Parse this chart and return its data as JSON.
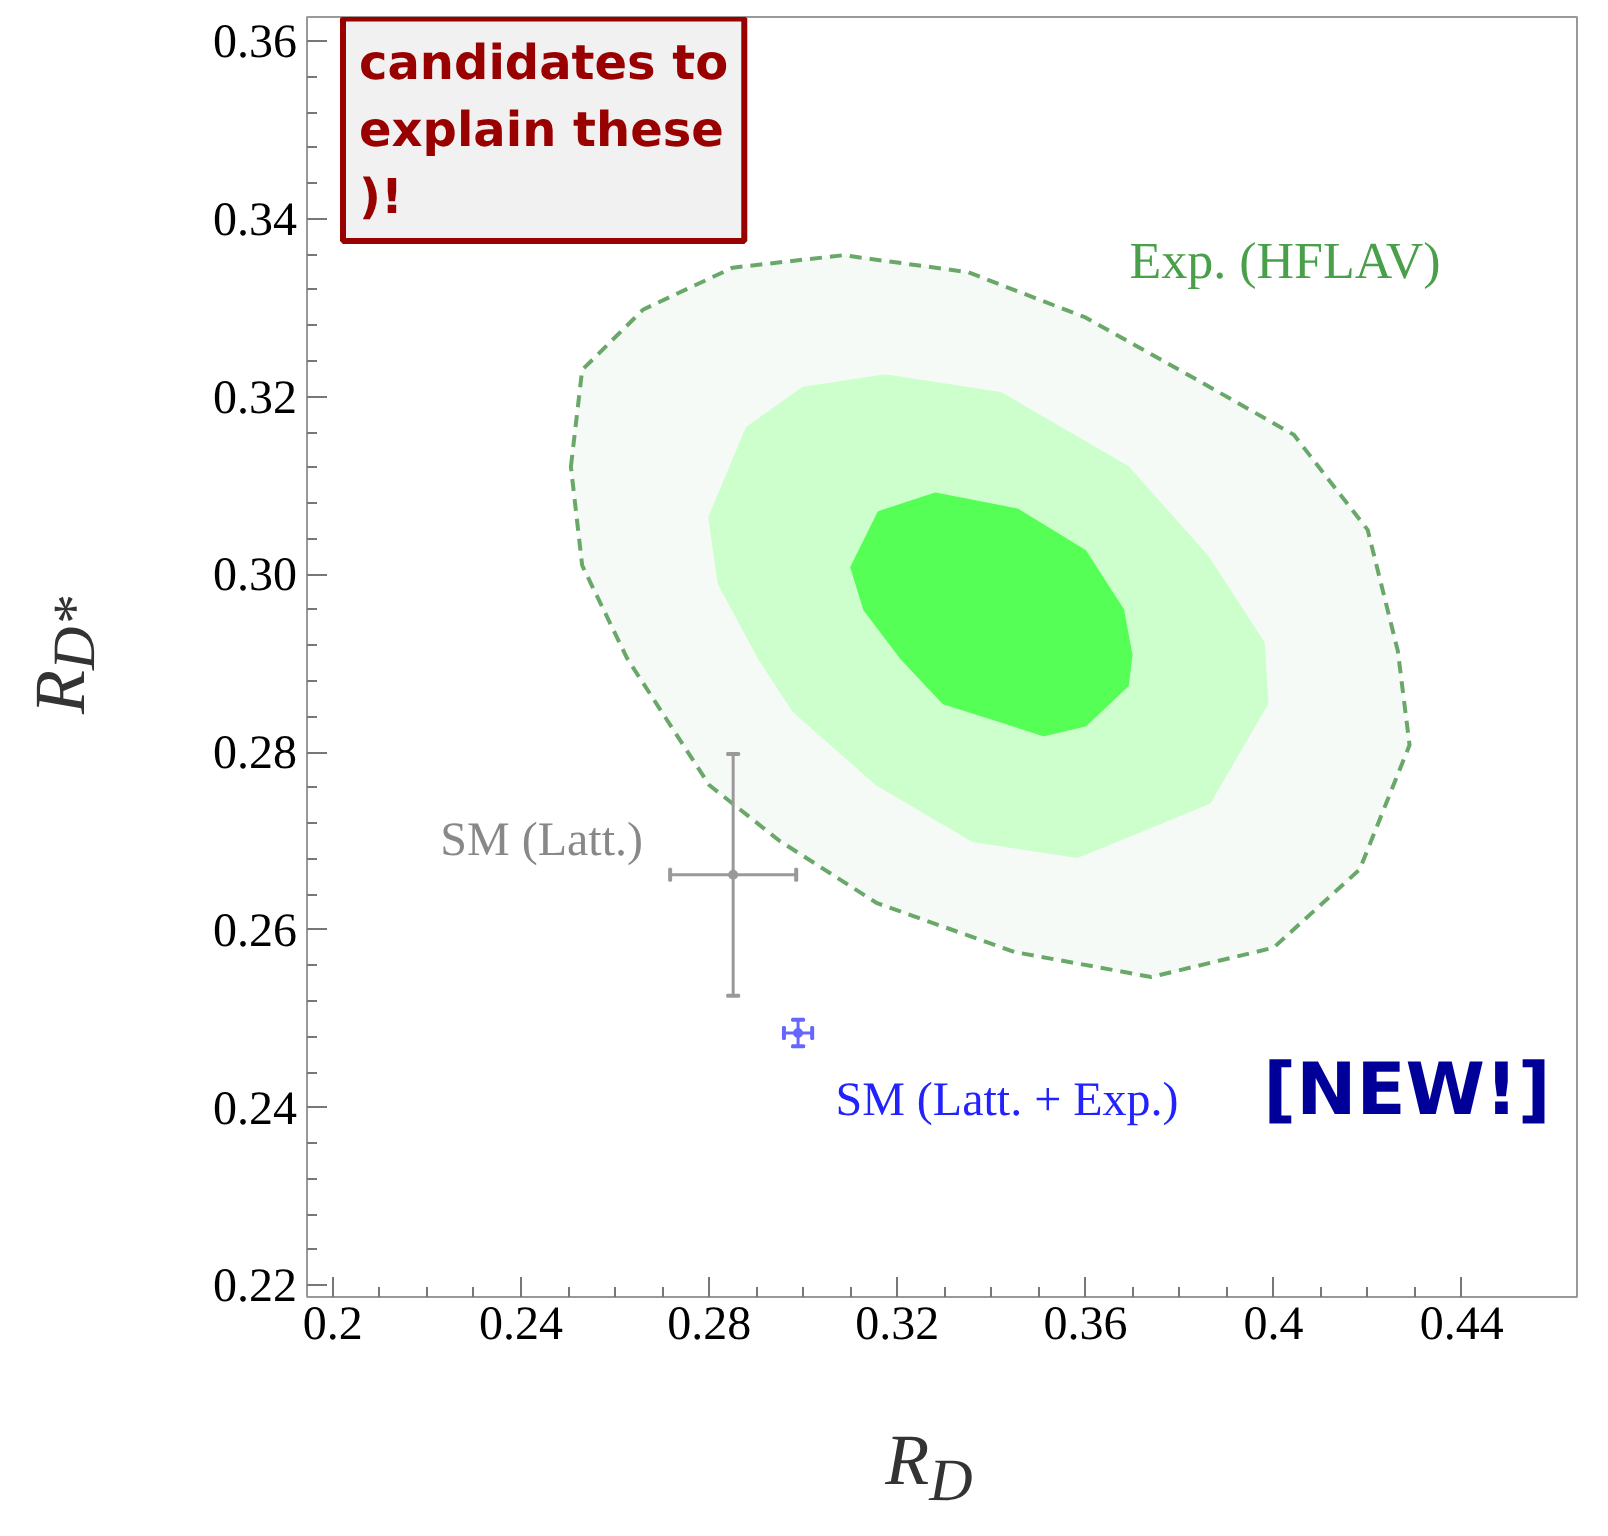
{
  "chart_data": {
    "type": "scatter",
    "xlabel": "R$_{D}$",
    "ylabel": "R$_{D*}$",
    "xlim": [
      0.1945,
      0.4645
    ],
    "ylim": [
      0.2187,
      0.3627
    ],
    "xticks": [
      0.2,
      0.24,
      0.28,
      0.32,
      0.36,
      {
        "value": 0.4,
        "label": "0.4"
      },
      0.44
    ],
    "yticks": [
      0.22,
      0.24,
      0.26,
      0.28,
      {
        "value": 0.3,
        "label": "0.30"
      },
      0.32,
      0.34,
      0.36
    ],
    "series": [
      {
        "type": "area",
        "line_style": "dashed",
        "color": "#6aa86a",
        "x": [
          0.2506,
          0.253,
          0.266,
          0.285,
          0.3085,
          0.335,
          0.36,
          0.385,
          0.4043,
          0.42,
          0.4264,
          0.4289,
          0.4183,
          0.4,
          0.374,
          0.345,
          0.3157,
          0.295,
          0.28,
          0.2626,
          0.253,
          0.2506
        ],
        "values": [
          0.3121,
          0.323,
          0.3298,
          0.3345,
          0.3359,
          0.334,
          0.3289,
          0.3215,
          0.3157,
          0.305,
          0.2914,
          0.2808,
          0.2668,
          0.258,
          0.2547,
          0.2575,
          0.263,
          0.27,
          0.2763,
          0.2905,
          0.301,
          0.3121
        ]
      },
      {
        "type": "area",
        "color": "#ccffcc",
        "x": [
          0.28,
          0.288,
          0.3,
          0.3174,
          0.342,
          0.369,
          0.386,
          0.3979,
          0.3987,
          0.3864,
          0.3583,
          0.336,
          0.3157,
          0.2979,
          0.2906,
          0.282,
          0.28
        ],
        "values": [
          0.3064,
          0.3165,
          0.321,
          0.3224,
          0.3204,
          0.3121,
          0.302,
          0.2923,
          0.2855,
          0.2743,
          0.2682,
          0.27,
          0.2763,
          0.2846,
          0.2905,
          0.299,
          0.3064
        ]
      },
      {
        "type": "area",
        "color": "#55ff55",
        "x": [
          0.3102,
          0.316,
          0.3281,
          0.3455,
          0.36,
          0.368,
          0.3698,
          0.369,
          0.36,
          0.3511,
          0.3298,
          0.3209,
          0.313,
          0.3102
        ],
        "values": [
          0.3008,
          0.307,
          0.3091,
          0.3073,
          0.3026,
          0.296,
          0.2909,
          0.2875,
          0.283,
          0.2819,
          0.2855,
          0.2905,
          0.296,
          0.3008
        ]
      },
      {
        "marker": "circle",
        "color": "#999999",
        "x": [
          0.2851
        ],
        "values": [
          0.2662
        ],
        "errors": [
          0.0136
        ],
        "xerrors": [
          0.0134
        ]
      },
      {
        "marker": "circle",
        "color": "#6666ff",
        "x": [
          0.2989
        ],
        "values": [
          0.2484
        ],
        "errors": [
          0.0015
        ],
        "xerrors": [
          0.003
        ]
      }
    ],
    "annotations": [
      "Exp. (HFLAV)",
      "SM (Latt.)",
      "SM (Latt. + Exp.)",
      "[NEW!]",
      "candidates to explain these",
      ")!"
    ]
  }
}
